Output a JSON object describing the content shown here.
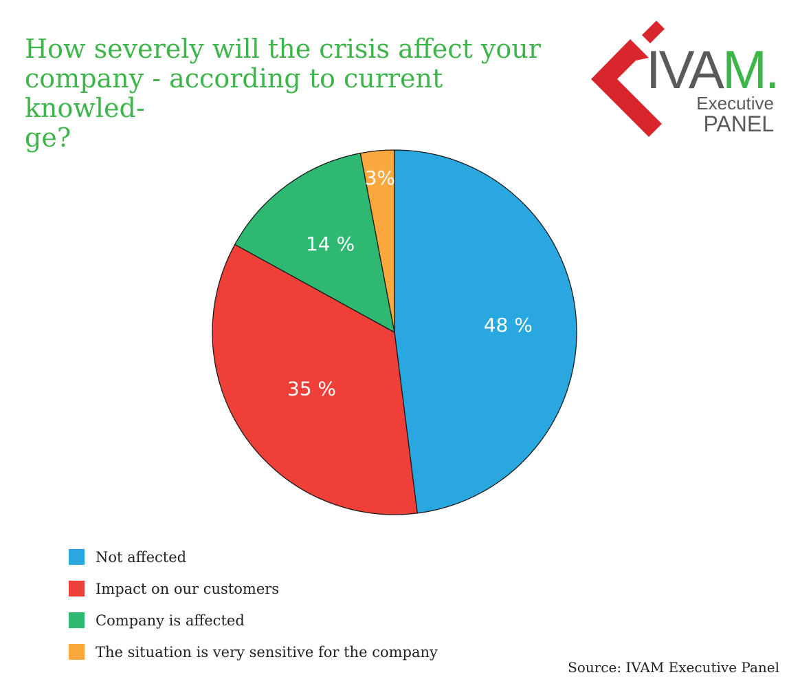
{
  "chart_data": {
    "type": "pie",
    "title": "How severely will the crisis affect your company - according to current knowled-ge?",
    "slices": [
      {
        "label": "Not affected",
        "value": 48,
        "display": "48 %",
        "color": "#29a8e0"
      },
      {
        "label": "Impact on our customers",
        "value": 35,
        "display": "35 %",
        "color": "#ee4038"
      },
      {
        "label": "Company is affected",
        "value": 14,
        "display": "14 %",
        "color": "#2eb872"
      },
      {
        "label": "The situation is very sensitive for the company",
        "value": 3,
        "display": "3%",
        "color": "#f9a83d"
      }
    ],
    "legend_position": "bottom-left"
  },
  "title_lines": [
    "How severely will the crisis affect your",
    "company - according to current knowled-",
    "ge?"
  ],
  "logo": {
    "brand": "IVAM.",
    "line1": "Executive",
    "line2": "PANEL",
    "red": "#d8262c",
    "green": "#3db54a",
    "gray": "#5a5a5a"
  },
  "source": "Source: IVAM Executive Panel"
}
